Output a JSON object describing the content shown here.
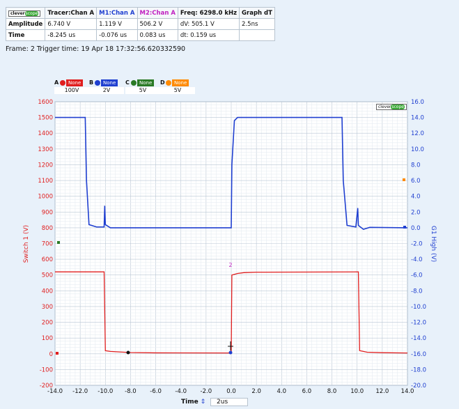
{
  "table": {
    "header": [
      "Tracer:Chan A",
      "M1:Chan A",
      "M2:Chan A",
      "Freq: 6298.0 kHz",
      "Graph dT"
    ],
    "rows": [
      {
        "label": "Amplitude",
        "cells": [
          "6.740 V",
          "1.119 V",
          "506.2 V",
          "dV: 505.1 V",
          "2.5ns"
        ]
      },
      {
        "label": "Time",
        "cells": [
          "-8.245 us",
          "-0.076 us",
          "0.083 us",
          "dt:  0.159 us",
          ""
        ]
      }
    ],
    "header_colors": [
      "#000000",
      "#1f3fd0",
      "#c020c0",
      "#000000",
      "#000000"
    ],
    "logo_text": "clever",
    "logo_accent": "scope"
  },
  "frame": {
    "label": "Frame: 2   Trigger time: 19 Apr 18 17:32:56.620332590"
  },
  "channels": [
    {
      "letter": "A",
      "color": "#e01e1e",
      "none": "None",
      "volt": "100V"
    },
    {
      "letter": "B",
      "color": "#1f3fd0",
      "none": "None",
      "volt": "2V"
    },
    {
      "letter": "C",
      "color": "#2a7a25",
      "none": "None",
      "volt": "5V"
    },
    {
      "letter": "D",
      "color": "#ff8a00",
      "none": "None",
      "volt": "5V"
    }
  ],
  "axes": {
    "left_label": "Switch 1 (V)",
    "right_label": "G1 High (V)",
    "left_ticks": [
      "1600",
      "1500",
      "1400",
      "1300",
      "1200",
      "1100",
      "1000",
      "900",
      "800",
      "700",
      "600",
      "500",
      "400",
      "300",
      "200",
      "100",
      "0",
      "-100",
      "-200"
    ],
    "right_ticks": [
      "16.0",
      "14.0",
      "12.0",
      "10.0",
      "8.0",
      "6.0",
      "4.0",
      "2.0",
      "0.0",
      "-2.0",
      "-4.0",
      "-6.0",
      "-8.0",
      "-10.0",
      "-12.0",
      "-14.0",
      "-16.0",
      "-18.0",
      "-20.0"
    ],
    "x_ticks": [
      "-14.0",
      "-12.0",
      "-10.0",
      "-8.0",
      "-6.0",
      "-4.0",
      "-2.0",
      "0.0",
      "2.0",
      "4.0",
      "6.0",
      "8.0",
      "10.0",
      "12.0",
      "14.0"
    ],
    "left_color": "#e01e1e",
    "right_color": "#1f3fd0"
  },
  "cursor": {
    "m2_label": "2"
  },
  "footer": {
    "time_label": "Time",
    "time_value": "2us"
  }
}
